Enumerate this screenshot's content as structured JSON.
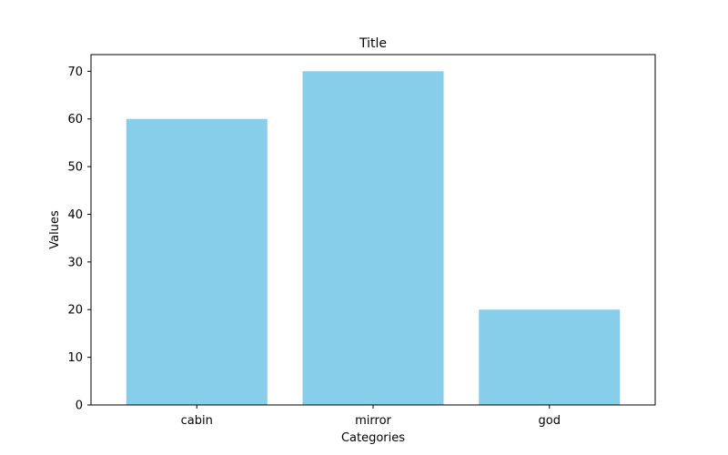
{
  "chart_data": {
    "type": "bar",
    "title": "Title",
    "xlabel": "Categories",
    "ylabel": "Values",
    "categories": [
      "cabin",
      "mirror",
      "god"
    ],
    "values": [
      60,
      70,
      20
    ],
    "ylim": [
      0,
      73.5
    ],
    "yticks": [
      0,
      10,
      20,
      30,
      40,
      50,
      60,
      70
    ],
    "bar_color": "#87ceeb",
    "grid": false,
    "legend": "none"
  }
}
